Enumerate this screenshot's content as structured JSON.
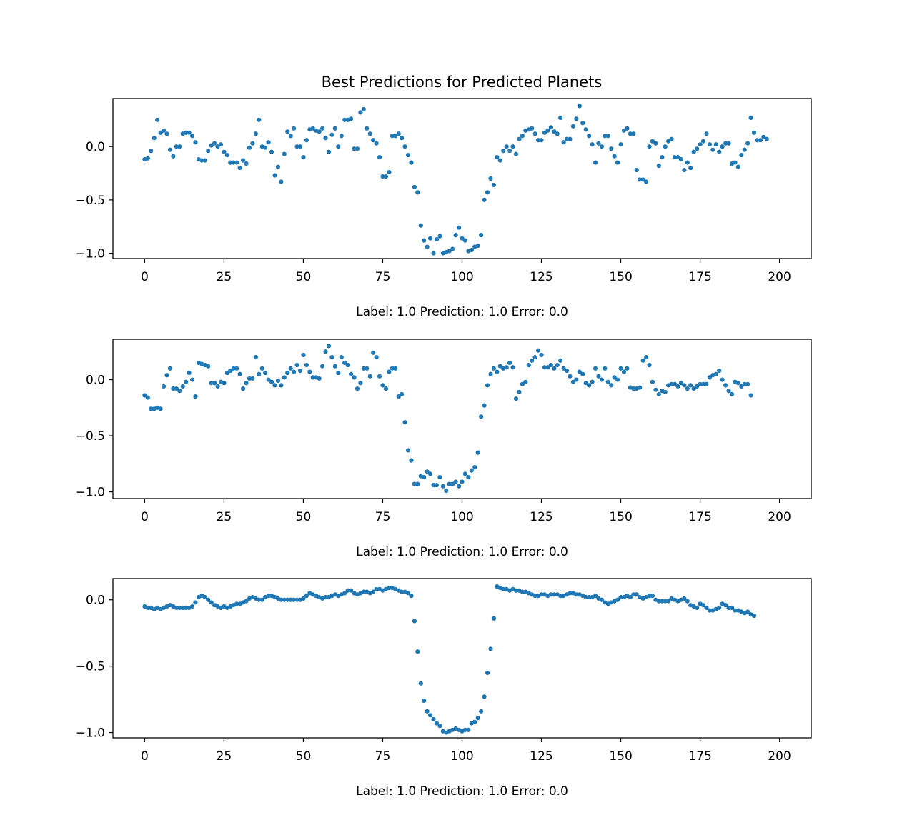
{
  "figure": {
    "title": "Best Predictions for Predicted Planets"
  },
  "chart_data": [
    {
      "type": "scatter",
      "title": "Best Predictions for Predicted Planets",
      "xlabel": "Label: 1.0 Prediction: 1.0 Error: 0.0",
      "ylabel": "",
      "xlim": [
        -10,
        210
      ],
      "ylim": [
        -1.05,
        0.45
      ],
      "xticks": [
        0,
        25,
        50,
        75,
        100,
        125,
        150,
        175,
        200
      ],
      "yticks": [
        0.0,
        -0.5,
        -1.0
      ],
      "ytick_labels": [
        "0.0",
        "−0.5",
        "−1.0"
      ],
      "color": "#1f77b4",
      "grid": false,
      "x_start": 0,
      "x_step": 1,
      "y": [
        -0.12,
        -0.11,
        -0.04,
        0.08,
        0.25,
        0.13,
        0.15,
        0.12,
        -0.03,
        -0.09,
        0.0,
        0.0,
        0.12,
        0.13,
        0.13,
        0.1,
        0.04,
        -0.12,
        -0.13,
        -0.13,
        -0.04,
        0.01,
        0.03,
        0.0,
        0.02,
        -0.05,
        -0.08,
        -0.15,
        -0.15,
        -0.15,
        -0.2,
        -0.13,
        -0.16,
        -0.01,
        0.03,
        0.12,
        0.25,
        0.0,
        -0.01,
        0.04,
        -0.05,
        -0.27,
        -0.19,
        -0.33,
        -0.07,
        0.14,
        0.1,
        0.17,
        0.0,
        0.0,
        -0.1,
        0.06,
        0.16,
        0.17,
        0.15,
        0.14,
        0.17,
        0.08,
        -0.05,
        0.11,
        0.17,
        0.0,
        0.1,
        0.25,
        0.25,
        0.26,
        -0.02,
        -0.02,
        0.32,
        0.35,
        0.17,
        0.12,
        0.06,
        0.03,
        -0.1,
        -0.28,
        -0.28,
        -0.24,
        0.1,
        0.1,
        0.12,
        0.08,
        0.0,
        -0.08,
        -0.15,
        -0.38,
        -0.43,
        -0.74,
        -0.88,
        -0.94,
        -0.86,
        -1.0,
        -0.87,
        -0.84,
        -1.0,
        -0.99,
        -0.98,
        -0.96,
        -0.83,
        -0.76,
        -0.86,
        -0.88,
        -0.98,
        -0.97,
        -0.94,
        -0.93,
        -0.83,
        -0.5,
        -0.43,
        -0.3,
        -0.36,
        -0.1,
        -0.13,
        -0.04,
        0.0,
        -0.04,
        0.0,
        -0.07,
        0.07,
        0.1,
        0.15,
        0.16,
        0.17,
        0.12,
        0.06,
        0.06,
        0.13,
        0.15,
        0.18,
        0.14,
        0.12,
        0.27,
        0.04,
        0.07,
        0.07,
        0.19,
        0.26,
        0.38,
        0.22,
        0.16,
        0.1,
        0.02,
        -0.15,
        0.03,
        0.0,
        0.1,
        0.1,
        -0.02,
        -0.09,
        -0.15,
        0.02,
        0.15,
        0.17,
        0.12,
        0.12,
        -0.22,
        -0.31,
        -0.31,
        -0.33,
        0.0,
        0.05,
        0.03,
        -0.18,
        -0.1,
        0.0,
        0.05,
        0.07,
        -0.1,
        -0.1,
        -0.12,
        -0.22,
        -0.15,
        -0.2,
        -0.05,
        -0.02,
        0.02,
        0.05,
        0.12,
        0.02,
        -0.03,
        0.02,
        -0.05,
        0.0,
        0.03,
        0.03,
        -0.16,
        -0.15,
        -0.19,
        -0.08,
        -0.03,
        0.03,
        0.27,
        0.13,
        0.06,
        0.06,
        0.09,
        0.07
      ]
    },
    {
      "type": "scatter",
      "xlabel": "Label: 1.0 Prediction: 1.0 Error: 0.0",
      "ylabel": "",
      "xlim": [
        -10,
        210
      ],
      "ylim": [
        -1.06,
        0.36
      ],
      "xticks": [
        0,
        25,
        50,
        75,
        100,
        125,
        150,
        175,
        200
      ],
      "yticks": [
        0.0,
        -0.5,
        -1.0
      ],
      "ytick_labels": [
        "0.0",
        "−0.5",
        "−1.0"
      ],
      "color": "#1f77b4",
      "grid": false,
      "x_start": 0,
      "x_step": 1,
      "y": [
        -0.14,
        -0.16,
        -0.26,
        -0.26,
        -0.25,
        -0.26,
        -0.06,
        0.04,
        0.1,
        -0.08,
        -0.08,
        -0.1,
        -0.06,
        -0.02,
        0.06,
        0.0,
        -0.15,
        0.15,
        0.14,
        0.13,
        0.12,
        -0.03,
        -0.03,
        -0.06,
        -0.02,
        -0.03,
        0.06,
        0.08,
        0.1,
        0.1,
        0.05,
        -0.08,
        -0.03,
        0.01,
        0.01,
        0.2,
        0.05,
        0.1,
        0.06,
        0.0,
        -0.02,
        -0.05,
        -0.01,
        -0.05,
        0.02,
        0.06,
        0.1,
        0.07,
        0.13,
        0.08,
        0.22,
        0.13,
        0.07,
        0.02,
        0.02,
        0.01,
        0.12,
        0.25,
        0.3,
        0.2,
        0.12,
        0.06,
        0.2,
        0.15,
        0.13,
        0.05,
        0.02,
        -0.08,
        -0.03,
        0.1,
        0.1,
        0.03,
        0.24,
        0.2,
        0.03,
        -0.05,
        -0.08,
        0.07,
        0.1,
        0.1,
        -0.15,
        -0.13,
        -0.38,
        -0.63,
        -0.72,
        -0.93,
        -0.93,
        -0.86,
        -0.87,
        -0.82,
        -0.84,
        -0.94,
        -0.94,
        -0.87,
        -0.95,
        -0.99,
        -0.93,
        -0.93,
        -0.91,
        -0.95,
        -0.91,
        -0.84,
        -0.87,
        -0.81,
        -0.78,
        -0.65,
        -0.33,
        -0.23,
        -0.05,
        0.05,
        0.1,
        0.07,
        0.12,
        0.1,
        0.11,
        0.15,
        0.11,
        -0.17,
        -0.11,
        -0.04,
        -0.02,
        0.13,
        0.17,
        0.2,
        0.26,
        0.22,
        0.11,
        0.11,
        0.13,
        0.1,
        0.13,
        0.17,
        0.1,
        0.08,
        0.03,
        -0.02,
        0.0,
        0.07,
        0.05,
        -0.03,
        -0.05,
        -0.02,
        0.1,
        0.03,
        0.0,
        0.1,
        -0.02,
        -0.05,
        0.02,
        0.0,
        0.1,
        0.07,
        0.1,
        -0.07,
        -0.08,
        -0.08,
        -0.07,
        0.17,
        0.2,
        0.13,
        -0.02,
        -0.09,
        -0.13,
        -0.1,
        -0.11,
        -0.05,
        -0.04,
        -0.04,
        -0.06,
        -0.03,
        -0.05,
        -0.08,
        -0.05,
        -0.08,
        -0.06,
        -0.04,
        -0.04,
        -0.04,
        0.02,
        0.04,
        0.05,
        0.08,
        0.0,
        -0.05,
        -0.1,
        -0.13,
        -0.02,
        -0.03,
        -0.06,
        -0.04,
        -0.04,
        -0.14
      ]
    },
    {
      "type": "scatter",
      "xlabel": "Label: 1.0 Prediction: 1.0 Error: 0.0",
      "ylabel": "",
      "xlim": [
        -10,
        210
      ],
      "ylim": [
        -1.04,
        0.16
      ],
      "xticks": [
        0,
        25,
        50,
        75,
        100,
        125,
        150,
        175,
        200
      ],
      "yticks": [
        0.0,
        -0.5,
        -1.0
      ],
      "ytick_labels": [
        "0.0",
        "−0.5",
        "−1.0"
      ],
      "color": "#1f77b4",
      "grid": false,
      "x_start": 0,
      "x_step": 1,
      "y": [
        -0.05,
        -0.06,
        -0.06,
        -0.07,
        -0.06,
        -0.07,
        -0.06,
        -0.05,
        -0.04,
        -0.05,
        -0.06,
        -0.06,
        -0.06,
        -0.06,
        -0.06,
        -0.05,
        -0.02,
        0.02,
        0.03,
        0.02,
        0.0,
        -0.02,
        -0.04,
        -0.05,
        -0.06,
        -0.05,
        -0.06,
        -0.05,
        -0.04,
        -0.03,
        -0.03,
        -0.02,
        -0.01,
        0.01,
        0.02,
        0.01,
        0.0,
        0.0,
        0.02,
        0.03,
        0.03,
        0.02,
        0.01,
        0.0,
        0.0,
        0.0,
        0.0,
        0.0,
        0.0,
        0.0,
        0.01,
        0.03,
        0.05,
        0.04,
        0.03,
        0.02,
        0.01,
        0.02,
        0.02,
        0.03,
        0.04,
        0.03,
        0.04,
        0.05,
        0.07,
        0.07,
        0.05,
        0.04,
        0.05,
        0.06,
        0.06,
        0.05,
        0.06,
        0.08,
        0.08,
        0.07,
        0.08,
        0.09,
        0.09,
        0.08,
        0.07,
        0.06,
        0.06,
        0.05,
        0.03,
        -0.16,
        -0.39,
        -0.63,
        -0.76,
        -0.84,
        -0.87,
        -0.9,
        -0.93,
        -0.95,
        -0.99,
        -1.0,
        -0.99,
        -0.98,
        -0.97,
        -0.98,
        -0.99,
        -0.98,
        -0.98,
        -0.93,
        -0.92,
        -0.89,
        -0.84,
        -0.73,
        -0.55,
        -0.37,
        -0.14,
        0.1,
        0.09,
        0.08,
        0.08,
        0.07,
        0.08,
        0.07,
        0.07,
        0.06,
        0.06,
        0.05,
        0.04,
        0.03,
        0.03,
        0.04,
        0.04,
        0.03,
        0.04,
        0.04,
        0.04,
        0.03,
        0.03,
        0.04,
        0.05,
        0.05,
        0.04,
        0.04,
        0.03,
        0.02,
        0.02,
        0.02,
        0.03,
        0.01,
        0.0,
        -0.02,
        -0.03,
        -0.02,
        -0.01,
        0.0,
        0.02,
        0.02,
        0.03,
        0.02,
        0.04,
        0.04,
        0.02,
        0.01,
        0.02,
        0.03,
        0.03,
        0.0,
        -0.01,
        -0.01,
        -0.01,
        -0.01,
        0.01,
        0.0,
        -0.01,
        0.0,
        0.01,
        -0.01,
        -0.04,
        -0.05,
        -0.06,
        -0.03,
        -0.04,
        -0.06,
        -0.08,
        -0.08,
        -0.07,
        -0.06,
        -0.03,
        -0.04,
        -0.06,
        -0.06,
        -0.08,
        -0.08,
        -0.09,
        -0.1,
        -0.09,
        -0.11,
        -0.12
      ]
    }
  ]
}
